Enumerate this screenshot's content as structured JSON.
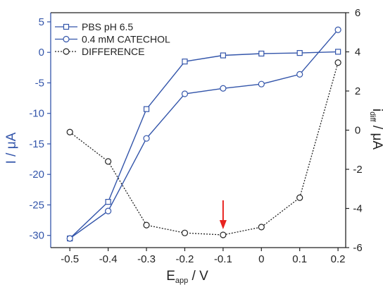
{
  "chart_data": {
    "type": "line",
    "x": [
      -0.5,
      -0.4,
      -0.3,
      -0.2,
      -0.1,
      0,
      0.1,
      0.2
    ],
    "x_ticks": [
      -0.5,
      -0.4,
      -0.3,
      -0.2,
      -0.1,
      0,
      0.1,
      0.2
    ],
    "x_tick_labels": [
      "-0.5",
      "-0.4",
      "-0.3",
      "-0.2",
      "-0.1",
      "0",
      "0.1",
      "0.2"
    ],
    "xlim": [
      -0.55,
      0.22
    ],
    "xlabel_main": "E",
    "xlabel_sub": "app",
    "xlabel_unit": " / V",
    "ylabel_left": "I / μA",
    "ylim_left": [
      -32,
      6.5
    ],
    "y_left_ticks": [
      5,
      0,
      -5,
      -10,
      -15,
      -20,
      -25,
      -30
    ],
    "y_left_tick_labels": [
      "5",
      "0",
      "-5",
      "-10",
      "-15",
      "-20",
      "-25",
      "-30"
    ],
    "ylabel_right_main": "i",
    "ylabel_right_sub": "diff",
    "ylabel_right_unit": " / μA",
    "ylim_right": [
      -6,
      6
    ],
    "y_right_ticks": [
      6,
      4,
      2,
      0,
      -2,
      -4,
      -6
    ],
    "y_right_tick_labels": [
      "6",
      "4",
      "2",
      "0",
      "-2",
      "-4",
      "-6"
    ],
    "left_axis_color": "#3355aa",
    "series_color": "#3355aa",
    "difference_color": "#222222",
    "arrow_color": "#e8231f",
    "arrow_x": -0.1,
    "legend_position": "top-left",
    "grid": false,
    "series": [
      {
        "name": "PBS pH 6.5",
        "axis": "left",
        "marker": "square",
        "line": "solid",
        "values": [
          -30.5,
          -24.5,
          -9.3,
          -1.5,
          -0.5,
          -0.2,
          -0.1,
          0.1
        ]
      },
      {
        "name": "0.4 mM CATECHOL",
        "axis": "left",
        "marker": "circle",
        "line": "solid",
        "values": [
          -30.5,
          -26.0,
          -14.1,
          -6.8,
          -5.9,
          -5.2,
          -3.6,
          3.7
        ]
      },
      {
        "name": "DIFFERENCE",
        "axis": "right",
        "marker": "circle",
        "line": "dotted",
        "values": [
          -0.1,
          -1.6,
          -4.85,
          -5.25,
          -5.35,
          -4.95,
          -3.45,
          3.45
        ]
      }
    ]
  }
}
